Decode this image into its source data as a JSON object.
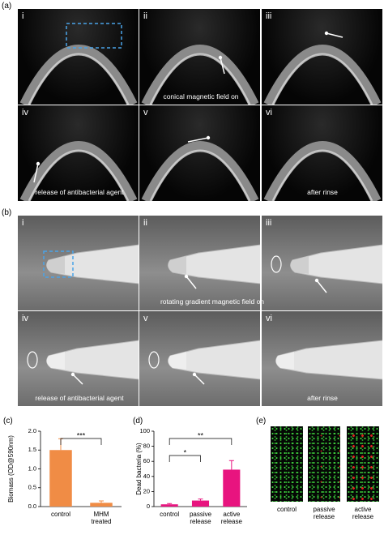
{
  "panel_a": {
    "label": "(a)",
    "images": [
      {
        "label": "i"
      },
      {
        "label": "ii"
      },
      {
        "label": "iii"
      },
      {
        "label": "iv"
      },
      {
        "label": "v"
      },
      {
        "label": "vi"
      }
    ],
    "captions": [
      "conical magnetic field  on",
      "release of antibacterial agent",
      "after rinse"
    ]
  },
  "panel_b": {
    "label": "(b)",
    "images": [
      {
        "label": "i"
      },
      {
        "label": "ii"
      },
      {
        "label": "iii"
      },
      {
        "label": "iv"
      },
      {
        "label": "v"
      },
      {
        "label": "vi"
      }
    ],
    "captions": [
      "rotating gradient magnetic field on",
      "release of antibacterial agent",
      "after rinse"
    ]
  },
  "chart_data": [
    {
      "type": "bar",
      "panel_label": "(c)",
      "y_label": "Biomass (OD@590nm)",
      "categories": [
        "control",
        "MHM\ntreated"
      ],
      "values": [
        1.5,
        0.1
      ],
      "errors": [
        0.3,
        0.05
      ],
      "color": "#f08c45",
      "ylim": [
        0,
        2
      ],
      "yticks": [
        {
          "value": 0,
          "label": "0.0"
        },
        0.5,
        {
          "value": 1,
          "label": "1.0"
        },
        1.5,
        {
          "value": 2,
          "label": "2.0"
        }
      ],
      "annotations": [
        "***"
      ]
    },
    {
      "type": "bar",
      "panel_label": "(d)",
      "y_label": "Dead bacteria (%)",
      "categories": [
        "control",
        "passive\nrelease",
        "active\nrelease"
      ],
      "values": [
        3,
        8,
        49
      ],
      "errors": [
        1,
        2,
        12
      ],
      "color": "#e8147f",
      "ylim": [
        0,
        100
      ],
      "yticks": [
        0,
        20,
        40,
        60,
        80,
        100
      ],
      "annotations": [
        "*",
        "**"
      ]
    }
  ],
  "panel_e": {
    "label": "(e)",
    "images": [
      "control",
      "passive\nrelease",
      "active\nrelease"
    ]
  }
}
